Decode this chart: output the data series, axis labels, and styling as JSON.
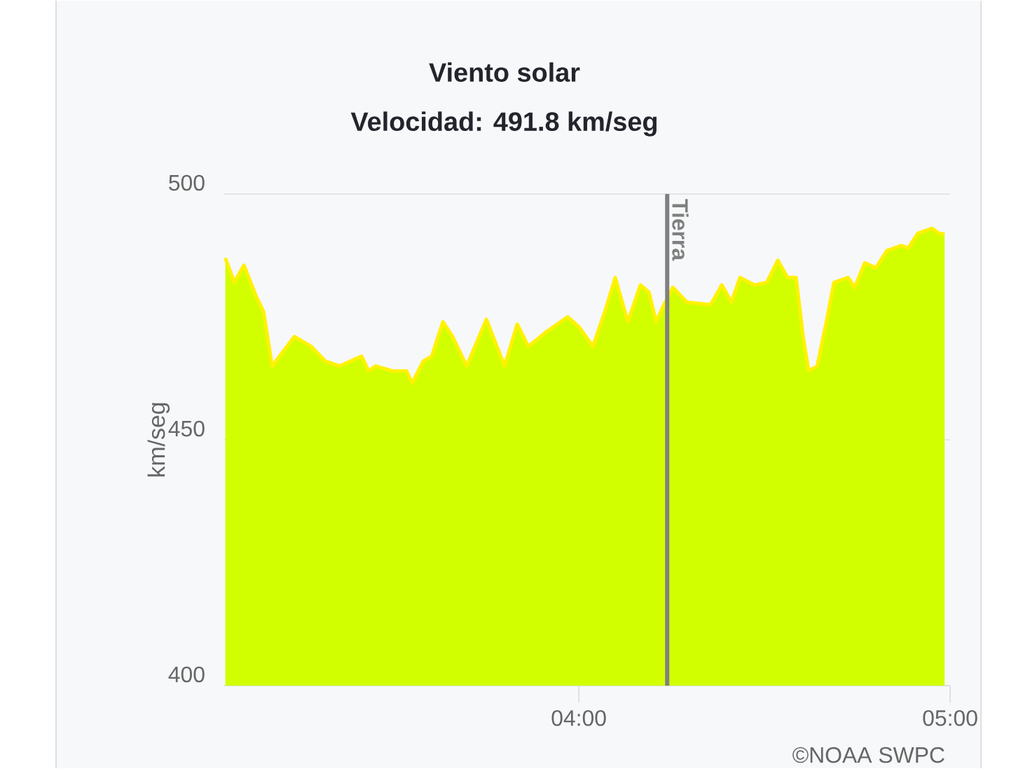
{
  "chart_data": {
    "type": "area",
    "title": "Viento solar",
    "subtitle": "Velocidad: 491.8 km/seg",
    "ylabel": "km/seg",
    "x": [
      3.048,
      3.072,
      3.098,
      3.132,
      3.151,
      3.174,
      3.204,
      3.234,
      3.279,
      3.317,
      3.355,
      3.415,
      3.434,
      3.453,
      3.498,
      3.536,
      3.551,
      3.581,
      3.604,
      3.634,
      3.66,
      3.698,
      3.751,
      3.8,
      3.834,
      3.864,
      3.913,
      3.97,
      4.0,
      4.038,
      4.072,
      4.098,
      4.132,
      4.166,
      4.189,
      4.208,
      4.226,
      4.253,
      4.291,
      4.355,
      4.385,
      4.411,
      4.434,
      4.472,
      4.506,
      4.536,
      4.562,
      4.585,
      4.604,
      4.619,
      4.642,
      4.668,
      4.687,
      4.725,
      4.743,
      4.77,
      4.8,
      4.83,
      4.868,
      4.887,
      4.913,
      4.951,
      4.97,
      4.985
    ],
    "series": [
      {
        "color": "#d2ff00",
        "values": [
          487,
          482,
          485.5,
          479,
          476,
          465,
          468,
          471,
          469,
          466,
          465,
          467,
          464,
          465,
          464,
          464,
          461.5,
          466,
          467,
          474,
          471,
          465,
          474.5,
          465,
          473.5,
          469,
          472,
          475,
          473,
          469,
          476.5,
          483,
          474,
          481.5,
          480,
          474,
          477,
          481,
          478,
          477.5,
          481.5,
          478,
          483,
          481.5,
          482,
          486.5,
          483,
          483,
          471,
          464,
          465,
          474.5,
          482,
          483,
          481,
          486,
          485,
          488.5,
          489.5,
          489,
          492,
          493,
          492,
          491.8
        ]
      }
    ],
    "xlim": [
      3.045,
      5.0
    ],
    "ylim": [
      400,
      500
    ],
    "xticks": [
      {
        "value": 4,
        "label": "04:00"
      },
      {
        "value": 5,
        "label": "05:00"
      }
    ],
    "yticks": [
      400,
      450,
      500
    ],
    "grid": "y",
    "ref_lines": [
      {
        "axis": "x",
        "value": 4.238,
        "label": "Tierra",
        "color": "#808080"
      }
    ],
    "annotations": [
      "©NOAA SWPC"
    ]
  }
}
